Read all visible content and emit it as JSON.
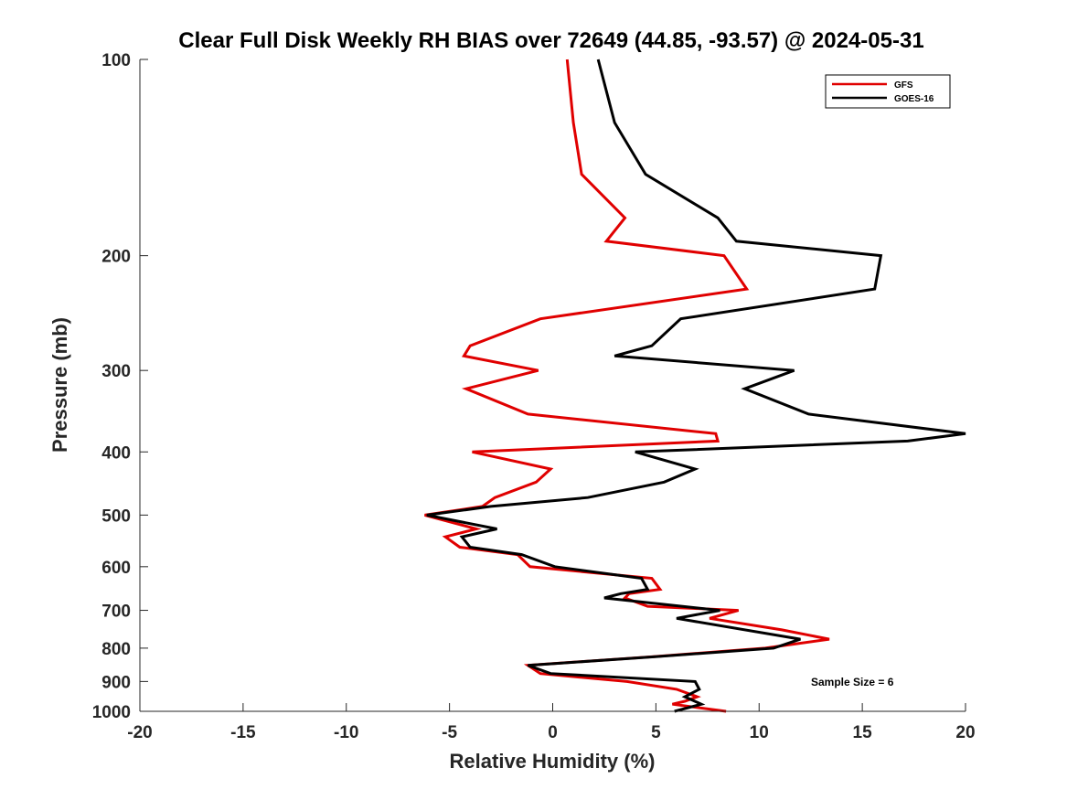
{
  "chart_data": {
    "type": "line",
    "title": "Clear Full Disk Weekly RH BIAS over 72649 (44.85, -93.57) @ 2024-05-31",
    "xlabel": "Relative Humidity (%)",
    "ylabel": "Pressure (mb)",
    "xlim": [
      -20,
      20
    ],
    "ylim": [
      1000,
      100
    ],
    "yscale": "log",
    "xticks": [
      -20,
      -15,
      -10,
      -5,
      0,
      5,
      10,
      15,
      20
    ],
    "yticks": [
      100,
      200,
      300,
      400,
      500,
      600,
      700,
      800,
      900,
      1000
    ],
    "grid": false,
    "legend_position": "top-right",
    "annotation": "Sample Size = 6",
    "series": [
      {
        "name": "GFS",
        "color": "#e00000",
        "points": [
          [
            0.7,
            100
          ],
          [
            1.0,
            125
          ],
          [
            1.4,
            150
          ],
          [
            3.5,
            175
          ],
          [
            2.6,
            190
          ],
          [
            8.3,
            200
          ],
          [
            9.4,
            225
          ],
          [
            -0.6,
            250
          ],
          [
            -4.0,
            275
          ],
          [
            -4.3,
            285
          ],
          [
            -0.7,
            300
          ],
          [
            -4.2,
            320
          ],
          [
            -1.2,
            350
          ],
          [
            7.9,
            375
          ],
          [
            8.0,
            385
          ],
          [
            -3.9,
            400
          ],
          [
            -0.1,
            425
          ],
          [
            -0.8,
            445
          ],
          [
            -2.8,
            470
          ],
          [
            -3.4,
            485
          ],
          [
            -6.2,
            500
          ],
          [
            -3.7,
            525
          ],
          [
            -5.2,
            540
          ],
          [
            -4.5,
            560
          ],
          [
            -1.7,
            575
          ],
          [
            -1.1,
            600
          ],
          [
            4.8,
            625
          ],
          [
            5.2,
            650
          ],
          [
            3.7,
            660
          ],
          [
            3.5,
            670
          ],
          [
            4.6,
            690
          ],
          [
            9.0,
            700
          ],
          [
            7.6,
            720
          ],
          [
            11.1,
            750
          ],
          [
            13.4,
            775
          ],
          [
            10.3,
            800
          ],
          [
            4.8,
            825
          ],
          [
            -1.2,
            850
          ],
          [
            -0.6,
            875
          ],
          [
            3.6,
            900
          ],
          [
            6.0,
            925
          ],
          [
            7.0,
            950
          ],
          [
            6.4,
            965
          ],
          [
            5.8,
            975
          ],
          [
            8.4,
            1000
          ]
        ]
      },
      {
        "name": "GOES-16",
        "color": "#000000",
        "points": [
          [
            2.2,
            100
          ],
          [
            3.0,
            125
          ],
          [
            4.5,
            150
          ],
          [
            8.0,
            175
          ],
          [
            8.9,
            190
          ],
          [
            15.9,
            200
          ],
          [
            15.6,
            225
          ],
          [
            6.2,
            250
          ],
          [
            4.8,
            275
          ],
          [
            3.0,
            285
          ],
          [
            11.7,
            300
          ],
          [
            9.3,
            320
          ],
          [
            12.4,
            350
          ],
          [
            20.0,
            375
          ],
          [
            17.2,
            385
          ],
          [
            4.0,
            400
          ],
          [
            6.9,
            425
          ],
          [
            5.4,
            445
          ],
          [
            1.7,
            470
          ],
          [
            -3.0,
            485
          ],
          [
            -6.1,
            500
          ],
          [
            -2.7,
            525
          ],
          [
            -4.4,
            540
          ],
          [
            -4.0,
            560
          ],
          [
            -1.5,
            575
          ],
          [
            0.1,
            600
          ],
          [
            4.3,
            625
          ],
          [
            4.6,
            650
          ],
          [
            3.3,
            660
          ],
          [
            2.5,
            670
          ],
          [
            8.1,
            700
          ],
          [
            6.0,
            720
          ],
          [
            12.0,
            775
          ],
          [
            10.7,
            800
          ],
          [
            4.9,
            825
          ],
          [
            -1.2,
            850
          ],
          [
            -0.1,
            875
          ],
          [
            6.9,
            900
          ],
          [
            7.1,
            925
          ],
          [
            6.4,
            950
          ],
          [
            7.2,
            975
          ],
          [
            5.9,
            1000
          ]
        ]
      }
    ]
  }
}
